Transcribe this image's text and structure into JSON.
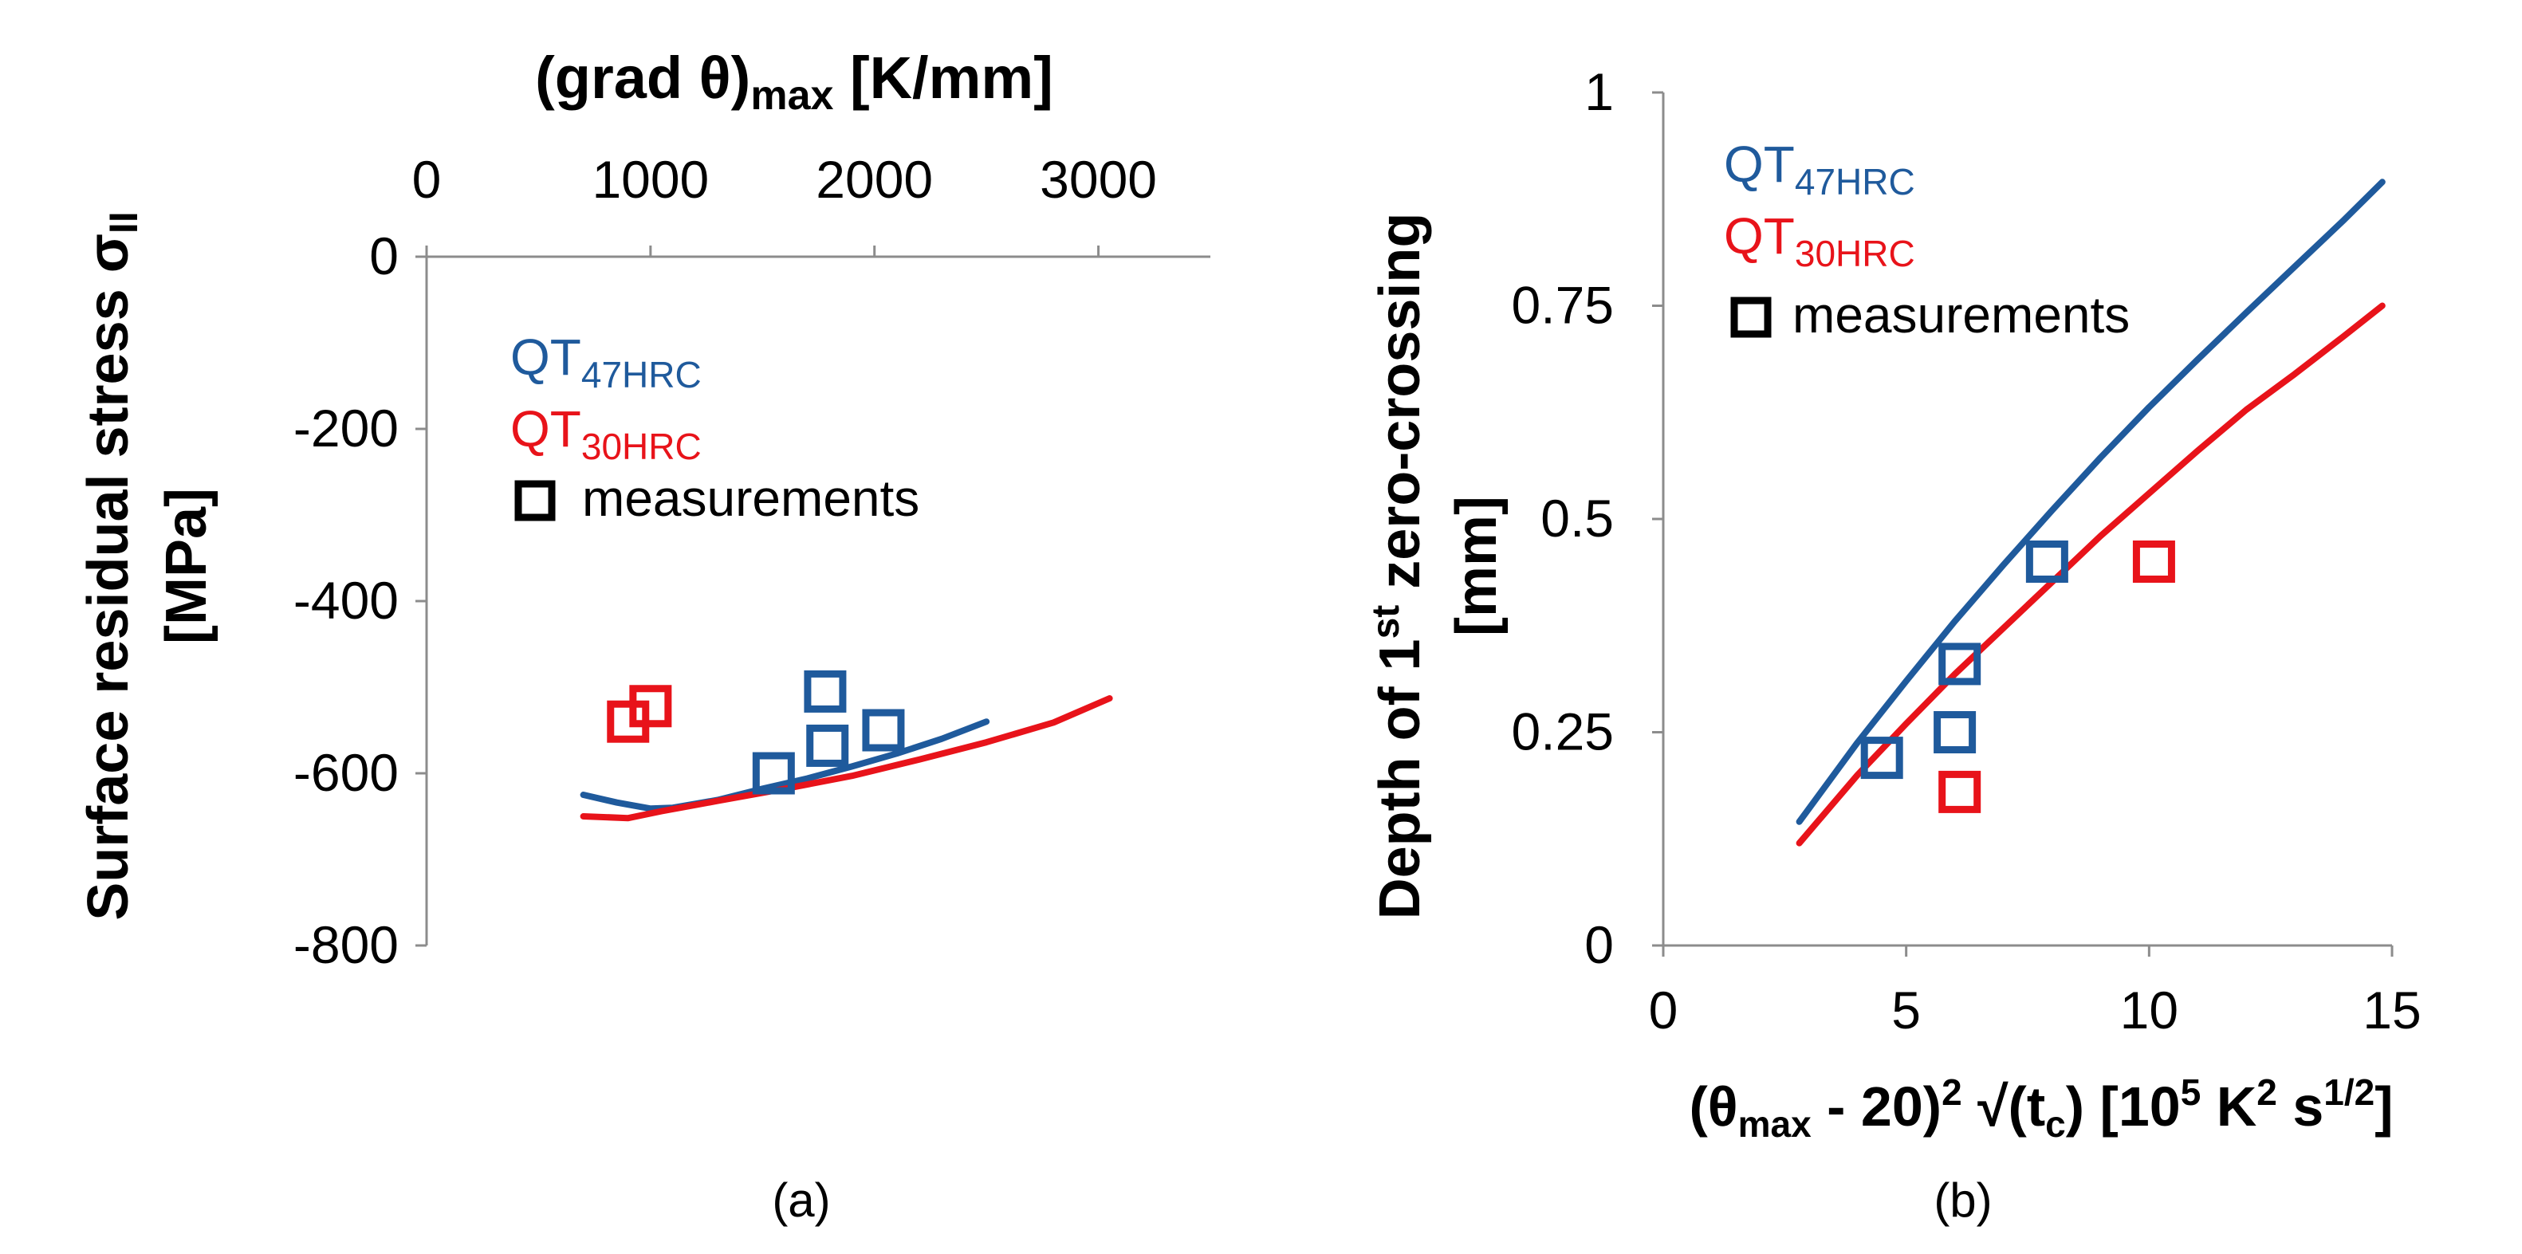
{
  "colors": {
    "qt47": "#1f5a9c",
    "qt30": "#e8131a",
    "marker_legend": "#000000"
  },
  "chart_data": [
    {
      "type": "line",
      "panel_label": "(a)",
      "top_axis_title": {
        "main": "(grad θ)",
        "sub": "max",
        "unit": " [K/mm]"
      },
      "ylabel": {
        "line1_main": "Surface residual stress σ",
        "line1_sub": "II",
        "line2": "[MPa]"
      },
      "xlim": [
        0,
        3500
      ],
      "ylim": [
        -800,
        0
      ],
      "x_ticks": [
        "0",
        "1000",
        "2000",
        "3000"
      ],
      "y_ticks": [
        "0",
        "-200",
        "-400",
        "-600",
        "-800"
      ],
      "legend": {
        "qt47": {
          "main": "QT",
          "sub": "47HRC"
        },
        "qt30": {
          "main": "QT",
          "sub": "30HRC"
        },
        "meas": "measurements"
      },
      "series": [
        {
          "name": "QT47HRC",
          "color": "#1f5a9c",
          "x": [
            700,
            850,
            1000,
            1100,
            1300,
            1500,
            1700,
            1900,
            2100,
            2300,
            2500
          ],
          "y": [
            -625,
            -634,
            -641,
            -640,
            -631,
            -618,
            -606,
            -592,
            -577,
            -560,
            -540
          ]
        },
        {
          "name": "QT30HRC",
          "color": "#e8131a",
          "x": [
            700,
            900,
            1050,
            1300,
            1600,
            1900,
            2200,
            2500,
            2800,
            3050
          ],
          "y": [
            -650,
            -652,
            -644,
            -632,
            -618,
            -603,
            -584,
            -564,
            -541,
            -513
          ]
        }
      ],
      "measurements": [
        {
          "series": "QT47HRC",
          "x": 1550,
          "y": -600
        },
        {
          "series": "QT47HRC",
          "x": 1780,
          "y": -505
        },
        {
          "series": "QT47HRC",
          "x": 1790,
          "y": -568
        },
        {
          "series": "QT47HRC",
          "x": 2040,
          "y": -550
        },
        {
          "series": "QT30HRC",
          "x": 900,
          "y": -540
        },
        {
          "series": "QT30HRC",
          "x": 1000,
          "y": -522
        }
      ]
    },
    {
      "type": "line",
      "panel_label": "(b)",
      "ylabel": {
        "line1_a": "Depth of 1",
        "line1_sup": "st",
        "line1_b": " zero-crossing",
        "line2": "[mm]"
      },
      "xlabel": {
        "a": "(θ",
        "sub1": "max",
        "b": " - 20)",
        "sup1": "2",
        "c": " √(t",
        "sub2": "c",
        "d": ")  [10",
        "sup2": "5",
        "e": " K",
        "sup3": "2",
        "f": " s",
        "sup4": "1/2",
        "g": "]"
      },
      "xlim": [
        0,
        15
      ],
      "ylim": [
        0,
        1
      ],
      "x_ticks": [
        "0",
        "5",
        "10",
        "15"
      ],
      "y_ticks": [
        "0",
        "0.25",
        "0.5",
        "0.75",
        "1"
      ],
      "legend": {
        "qt47": {
          "main": "QT",
          "sub": "47HRC"
        },
        "qt30": {
          "main": "QT",
          "sub": "30HRC"
        },
        "meas": "measurements"
      },
      "series": [
        {
          "name": "QT47HRC",
          "color": "#1f5a9c",
          "x": [
            2.8,
            4,
            5,
            6,
            7,
            8,
            9,
            10,
            11,
            12,
            13,
            14,
            14.8
          ],
          "y": [
            0.145,
            0.238,
            0.31,
            0.38,
            0.446,
            0.51,
            0.572,
            0.631,
            0.687,
            0.742,
            0.796,
            0.85,
            0.895
          ]
        },
        {
          "name": "QT30HRC",
          "color": "#e8131a",
          "x": [
            2.8,
            4,
            5,
            6,
            7,
            8,
            9,
            10,
            11,
            12,
            13,
            14,
            14.8
          ],
          "y": [
            0.12,
            0.2,
            0.26,
            0.318,
            0.372,
            0.426,
            0.48,
            0.53,
            0.58,
            0.628,
            0.67,
            0.714,
            0.75
          ]
        }
      ],
      "measurements": [
        {
          "series": "QT47HRC",
          "x": 4.5,
          "y": 0.22
        },
        {
          "series": "QT47HRC",
          "x": 6.0,
          "y": 0.25
        },
        {
          "series": "QT47HRC",
          "x": 6.1,
          "y": 0.33
        },
        {
          "series": "QT47HRC",
          "x": 7.9,
          "y": 0.45
        },
        {
          "series": "QT30HRC",
          "x": 6.1,
          "y": 0.18
        },
        {
          "series": "QT30HRC",
          "x": 10.1,
          "y": 0.45
        }
      ]
    }
  ]
}
